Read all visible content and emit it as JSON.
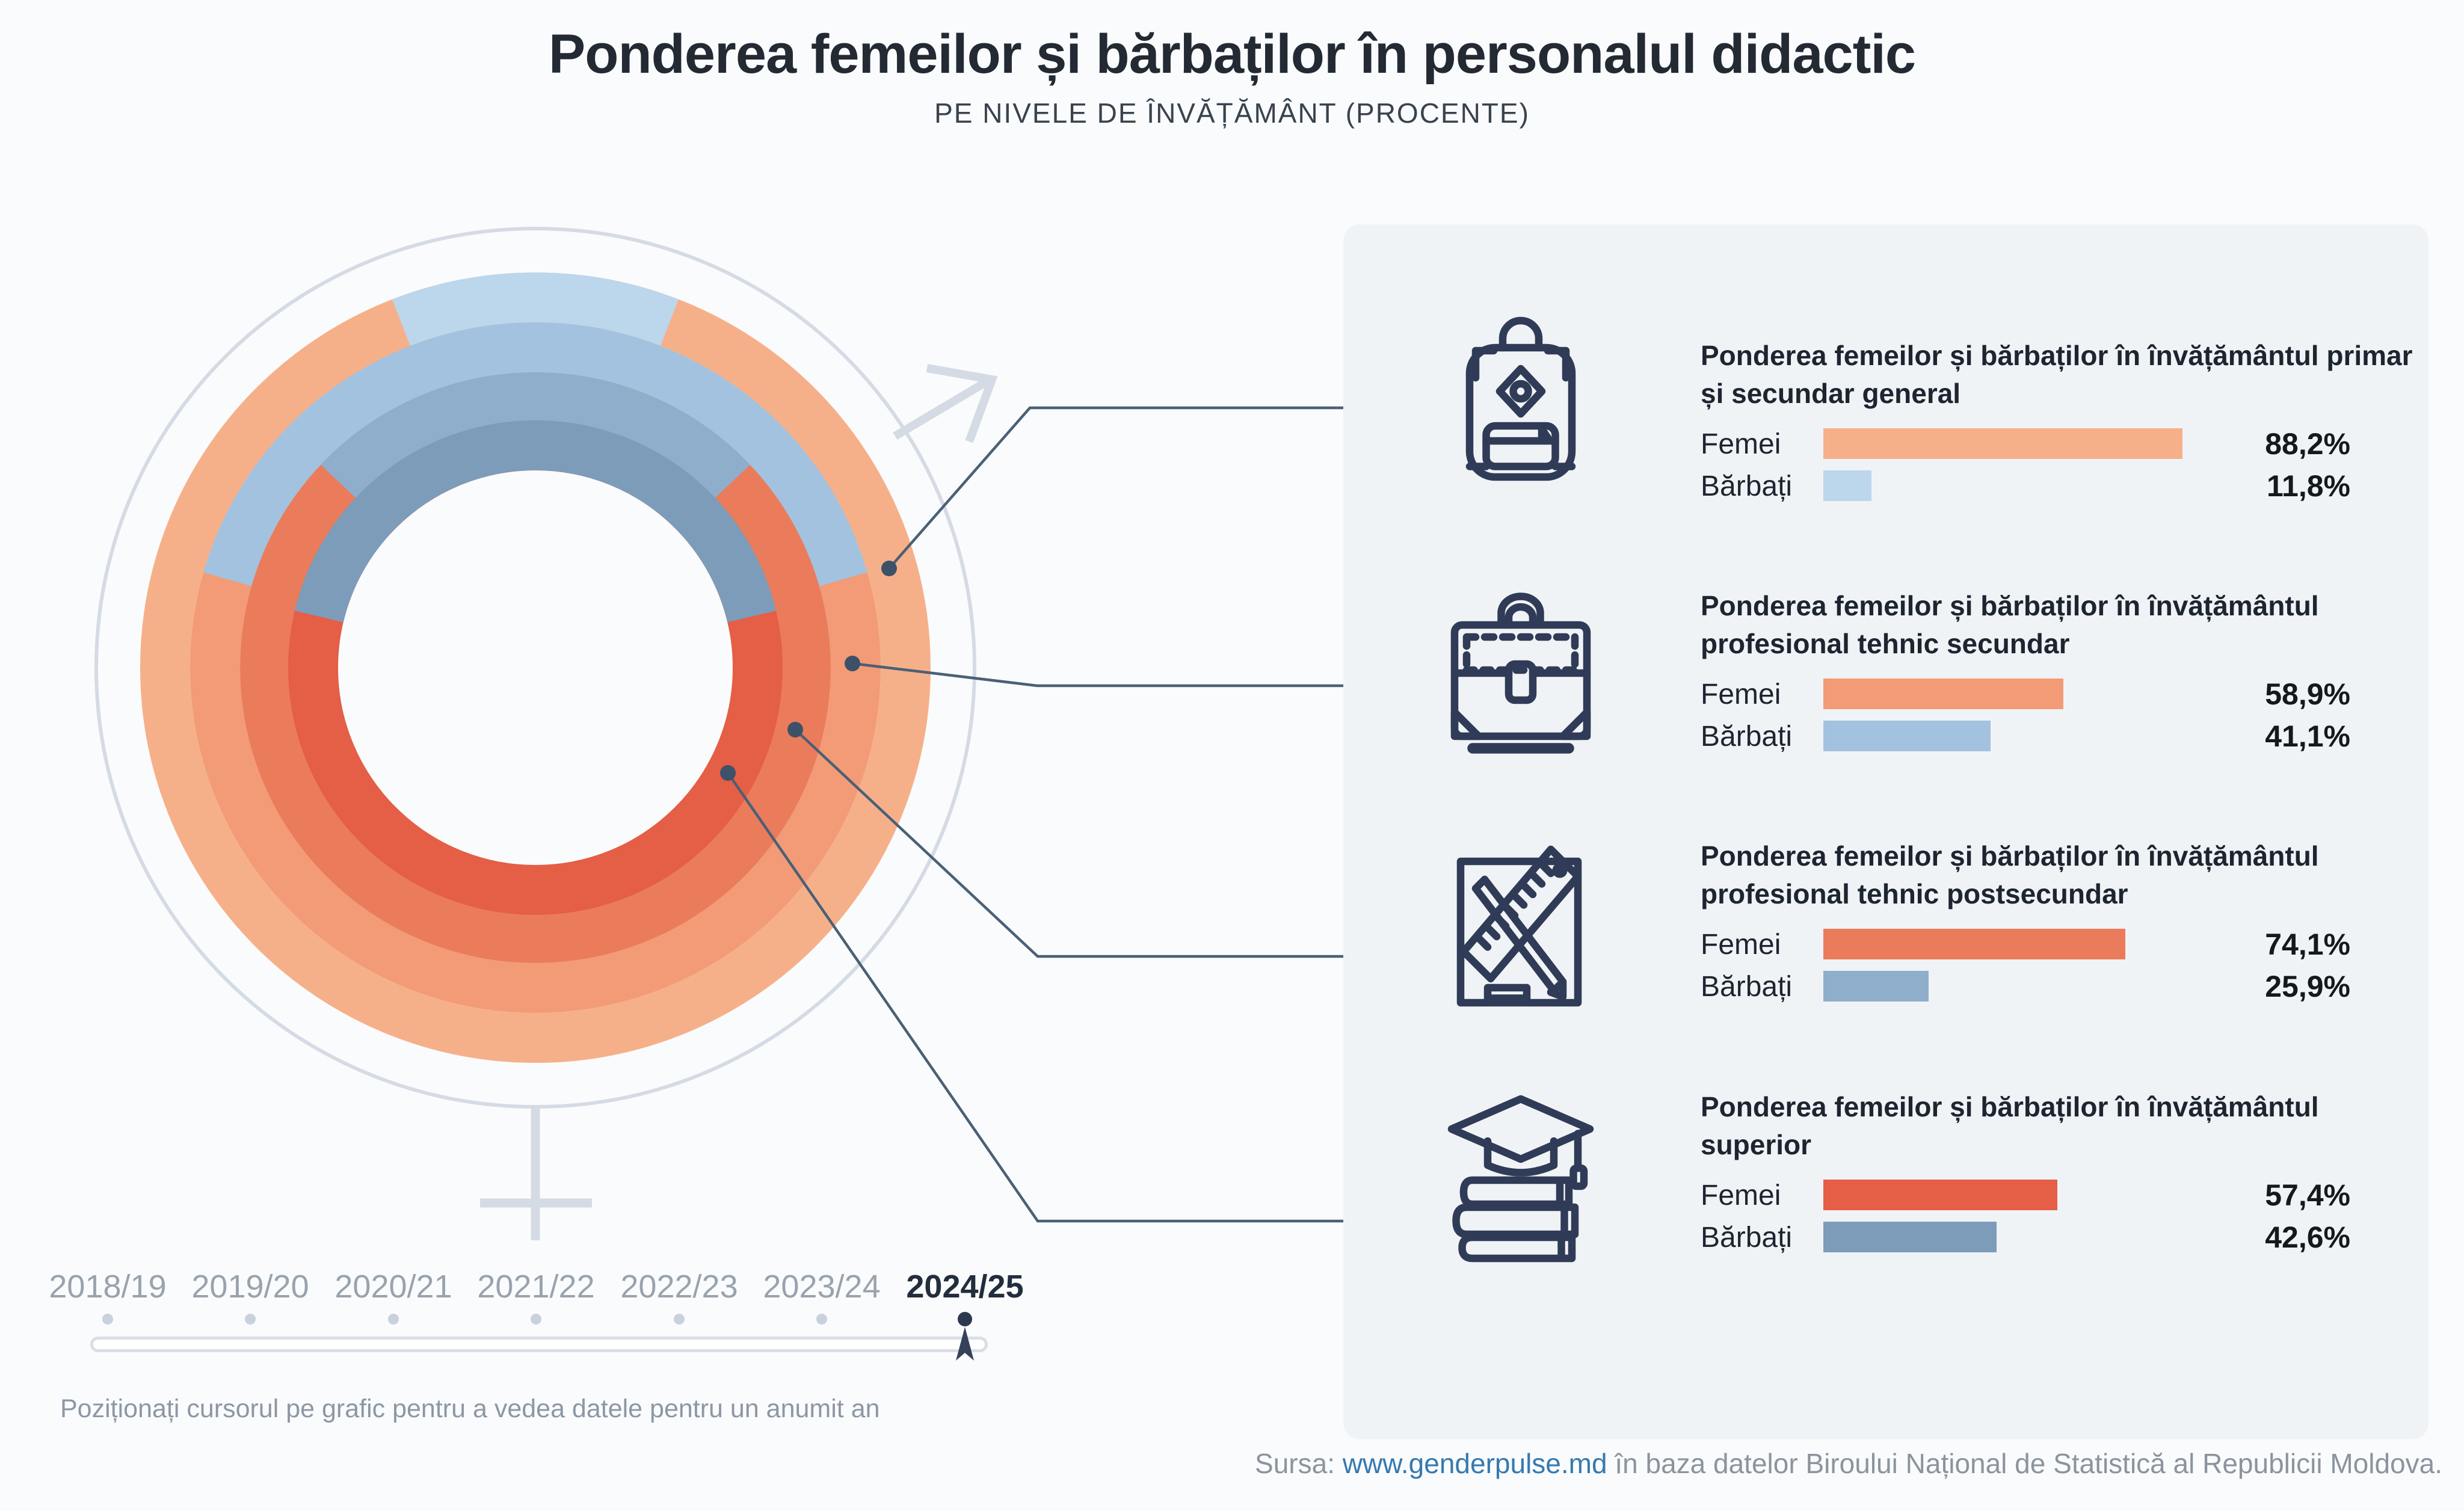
{
  "header": {
    "title": "Ponderea femeilor și bărbaților în personalul didactic",
    "subtitle": "PE NIVELE DE ÎNVĂȚĂMÂNT (PROCENTE)"
  },
  "chart_data": {
    "type": "donut-multi-ring",
    "title": "Ponderea femeilor și bărbaților în personalul didactic, pe nivele de învățământ, procente",
    "unit": "%",
    "year_selected": "2024/25",
    "rings_outer_to_inner": [
      {
        "level": "învățământul primar și secundar general",
        "femei": 88.2,
        "barbati": 11.8
      },
      {
        "level": "învățământul profesional tehnic secundar",
        "femei": 58.9,
        "barbati": 41.1
      },
      {
        "level": "învățământul profesional tehnic postsecundar",
        "femei": 74.1,
        "barbati": 25.9
      },
      {
        "level": "învățământul superior",
        "femei": 57.4,
        "barbati": 42.6
      }
    ],
    "legend": {
      "femei_colors": [
        "#F6B089",
        "#F29B76",
        "#EA7C5B",
        "#E55E46"
      ],
      "barbati_colors": [
        "#BCD6EC",
        "#A2C2E0",
        "#8EAECC",
        "#7D9CBA"
      ],
      "note": "arcurile albastre (bărbați) sunt centrate în partea de sus a inelelor"
    }
  },
  "sections": [
    {
      "icon": "backpack-icon",
      "title": "Ponderea femeilor și bărbaților în învățământul primar și secundar general",
      "femei_label": "Femei",
      "barbati_label": "Bărbați",
      "femei_value": "88,2%",
      "barbati_value": "11,8%",
      "femei_pct": 88.2,
      "barbati_pct": 11.8
    },
    {
      "icon": "briefcase-icon",
      "title": "Ponderea femeilor și bărbaților în învățământul profesional tehnic secundar",
      "femei_label": "Femei",
      "barbati_label": "Bărbați",
      "femei_value": "58,9%",
      "barbati_value": "41,1%",
      "femei_pct": 58.9,
      "barbati_pct": 41.1
    },
    {
      "icon": "pencil-ruler-icon",
      "title": "Ponderea femeilor și bărbaților în învățământul profesional tehnic postsecundar",
      "femei_label": "Femei",
      "barbati_label": "Bărbați",
      "femei_value": "74,1%",
      "barbati_value": "25,9%",
      "femei_pct": 74.1,
      "barbati_pct": 25.9
    },
    {
      "icon": "graduation-cap-books-icon",
      "title": "Ponderea femeilor și bărbaților în învățământul superior",
      "femei_label": "Femei",
      "barbati_label": "Bărbați",
      "femei_value": "57,4%",
      "barbati_value": "42,6%",
      "femei_pct": 57.4,
      "barbati_pct": 42.6
    }
  ],
  "timeline": {
    "years": [
      "2018/19",
      "2019/20",
      "2020/21",
      "2021/22",
      "2022/23",
      "2023/24",
      "2024/25"
    ],
    "selected": "2024/25",
    "hint": "Poziționați cursorul pe grafic pentru a vedea datele pentru un anumit an"
  },
  "footer": {
    "prefix": "Sursa: ",
    "link": "www.genderpulse.md",
    "suffix": " în baza datelor Biroului Național de Statistică al Republicii Moldova."
  },
  "colors": {
    "page_bg": "#FAFBFC",
    "panel_bg": "#F0F3F6",
    "femei": [
      "#F6B089",
      "#F29B76",
      "#EA7C5B",
      "#E55E46"
    ],
    "barbati": [
      "#BCD6EC",
      "#A2C2E0",
      "#8EAECC",
      "#7D9CBA"
    ],
    "gender_symbol": "#D5DBE4",
    "callout_line": "#4A6076",
    "callout_dot": "#3D5168",
    "icon_stroke": "#303B57",
    "link": "#3579B1",
    "muted_text": "#8D97A4",
    "year_inactive": "#99A3AE",
    "year_active": "#222E3E"
  }
}
